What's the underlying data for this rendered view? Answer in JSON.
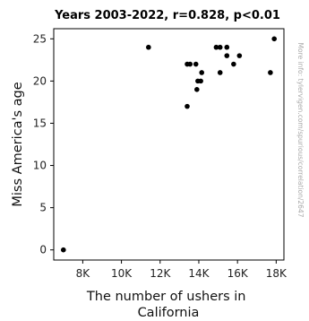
{
  "chart_data": {
    "type": "scatter",
    "title": "Years 2003-2022, r=0.828, p<0.01",
    "xlabel_lines": [
      "The number of ushers in",
      "California"
    ],
    "ylabel": "Miss America's age",
    "side_note": "More info: tylervigen.com/spurious/correlation/2647",
    "xlim": [
      6500,
      18400
    ],
    "ylim": [
      -1.2,
      26.2
    ],
    "x_ticks": [
      {
        "value": 8000,
        "label": "8K"
      },
      {
        "value": 10000,
        "label": "10K"
      },
      {
        "value": 12000,
        "label": "12K"
      },
      {
        "value": 14000,
        "label": "14K"
      },
      {
        "value": 16000,
        "label": "16K"
      },
      {
        "value": 18000,
        "label": "18K"
      }
    ],
    "y_ticks": [
      {
        "value": 0,
        "label": "0"
      },
      {
        "value": 5,
        "label": "5"
      },
      {
        "value": 10,
        "label": "10"
      },
      {
        "value": 15,
        "label": "15"
      },
      {
        "value": 20,
        "label": "20"
      },
      {
        "value": 25,
        "label": "25"
      }
    ],
    "grid": false,
    "point_color": "#000000",
    "points": [
      {
        "x": 7000,
        "y": 0
      },
      {
        "x": 11400,
        "y": 24
      },
      {
        "x": 13400,
        "y": 17
      },
      {
        "x": 13400,
        "y": 22
      },
      {
        "x": 13550,
        "y": 22
      },
      {
        "x": 13850,
        "y": 22
      },
      {
        "x": 13900,
        "y": 19
      },
      {
        "x": 13950,
        "y": 20
      },
      {
        "x": 14100,
        "y": 20
      },
      {
        "x": 14150,
        "y": 21
      },
      {
        "x": 14900,
        "y": 24
      },
      {
        "x": 15100,
        "y": 24
      },
      {
        "x": 15100,
        "y": 21
      },
      {
        "x": 15450,
        "y": 24
      },
      {
        "x": 15450,
        "y": 23
      },
      {
        "x": 15800,
        "y": 22
      },
      {
        "x": 16100,
        "y": 23
      },
      {
        "x": 17700,
        "y": 21
      },
      {
        "x": 17900,
        "y": 25
      }
    ]
  }
}
